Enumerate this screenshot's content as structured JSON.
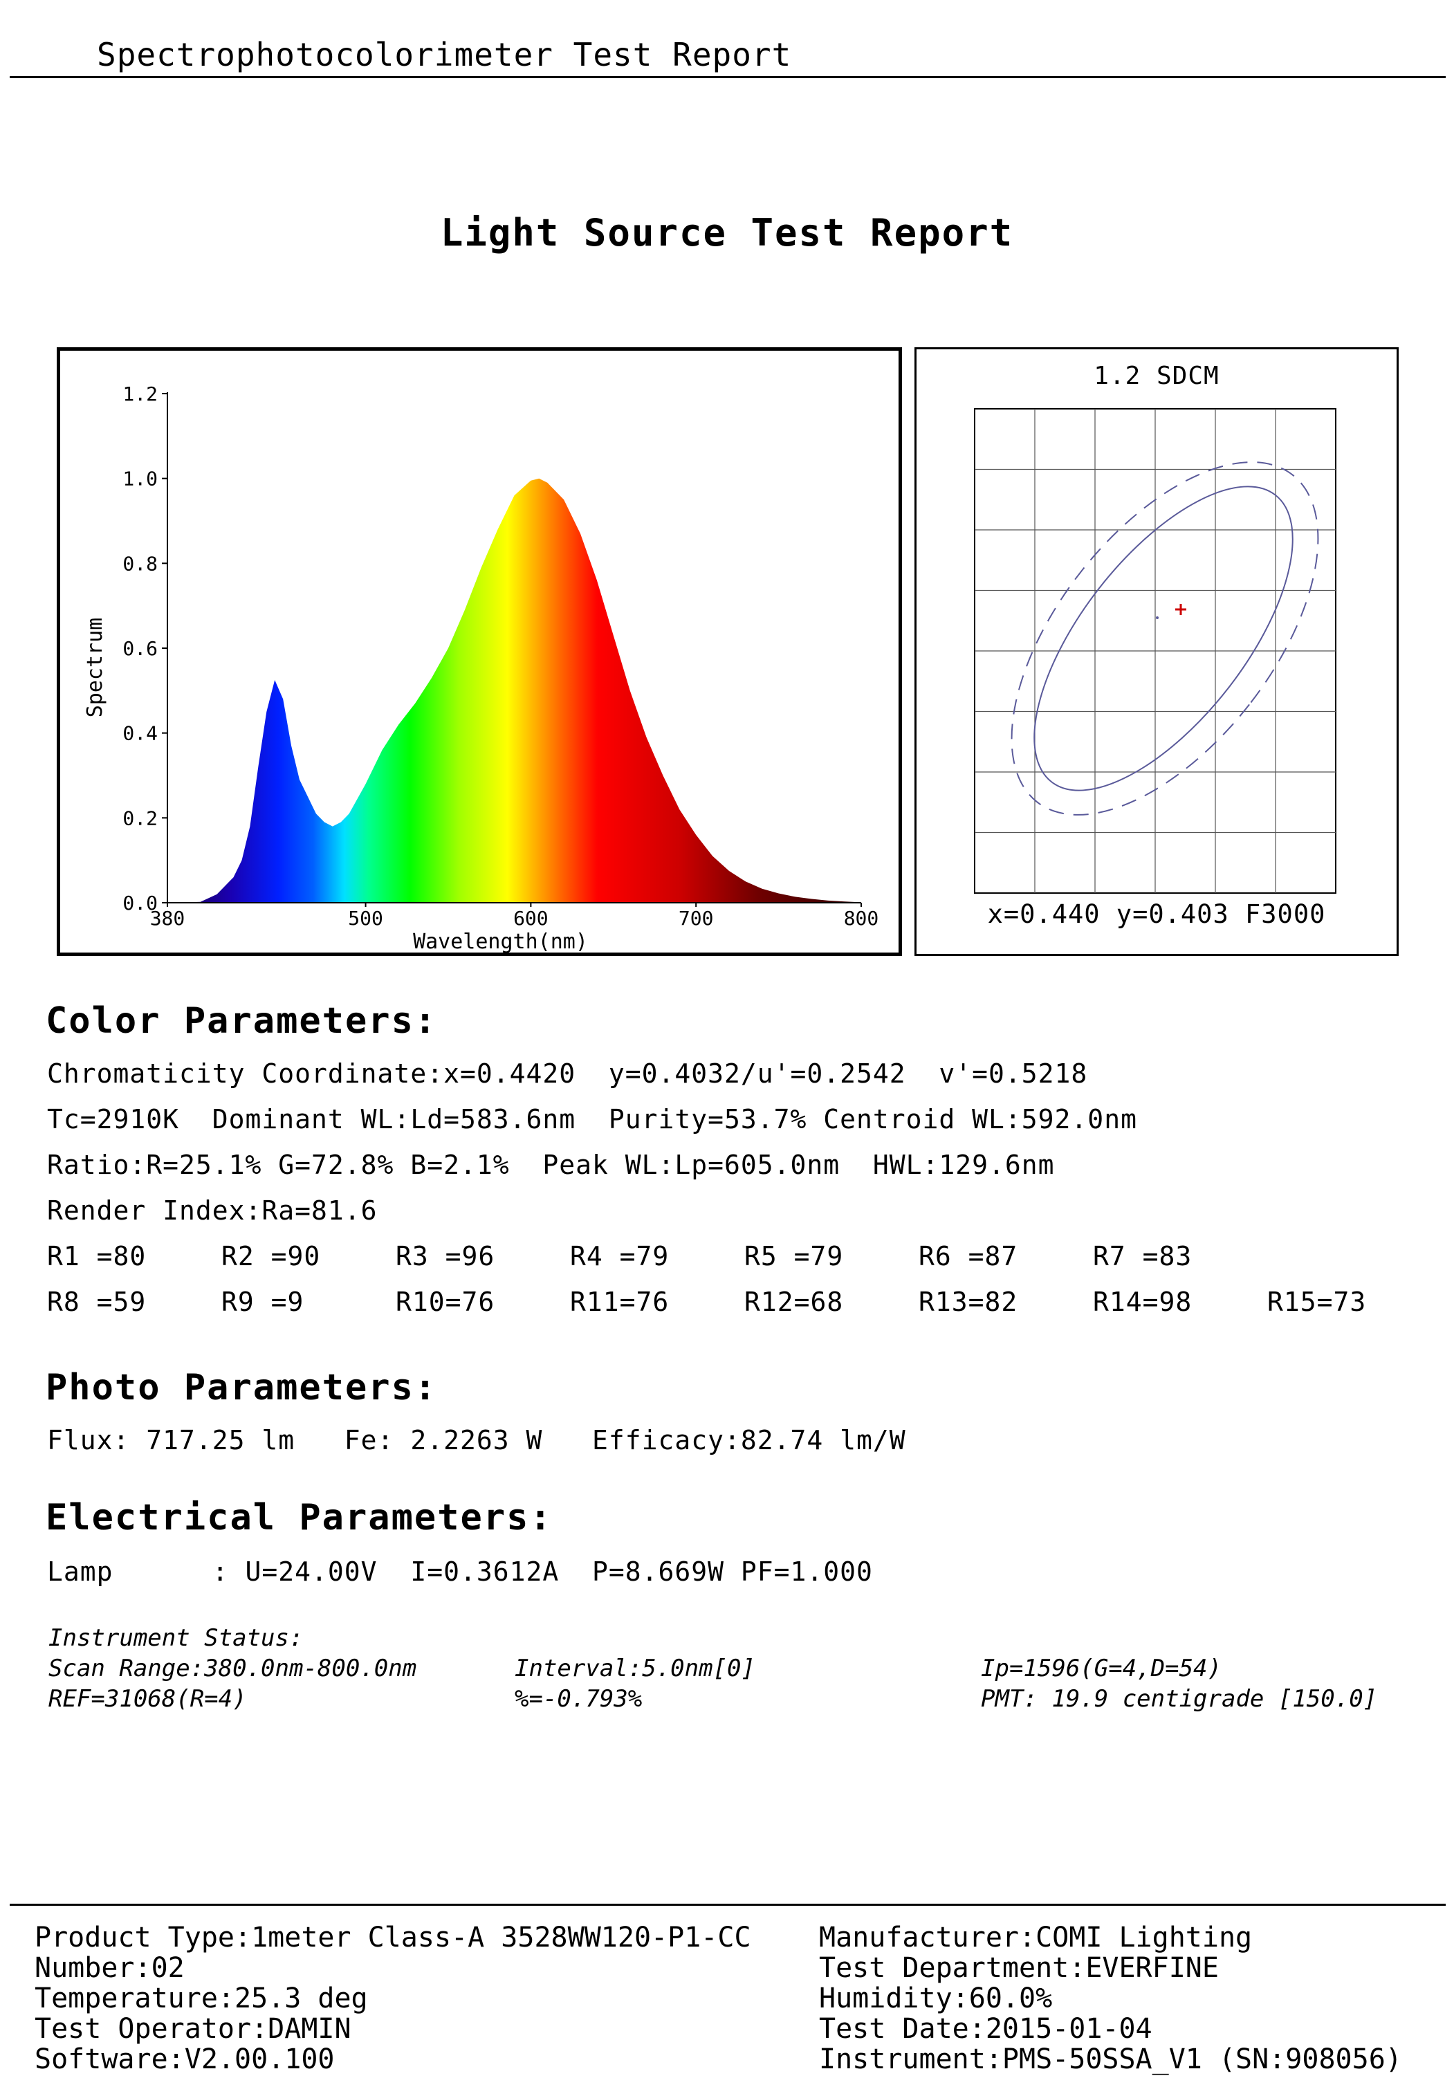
{
  "header": {
    "title": "Spectrophotocolorimeter Test Report"
  },
  "report_title": "Light Source Test Report",
  "chart_data": [
    {
      "type": "area",
      "xlabel": "Wavelength(nm)",
      "ylabel": "Spectrum",
      "xlim": [
        380,
        800
      ],
      "ylim": [
        0,
        1.2
      ],
      "x_ticks": [
        "380",
        "500",
        "600",
        "700",
        "800"
      ],
      "y_ticks": [
        "0.0",
        "0.2",
        "0.4",
        "0.6",
        "0.8",
        "1.0",
        "1.2"
      ],
      "grid": false,
      "fill": "visible-spectrum gradient",
      "x": [
        380,
        400,
        410,
        420,
        425,
        430,
        435,
        440,
        445,
        450,
        455,
        460,
        465,
        470,
        475,
        480,
        485,
        490,
        500,
        510,
        520,
        530,
        540,
        550,
        560,
        570,
        580,
        590,
        600,
        605,
        610,
        620,
        630,
        640,
        650,
        660,
        670,
        680,
        690,
        700,
        710,
        720,
        730,
        740,
        750,
        760,
        770,
        780,
        790,
        800
      ],
      "y": [
        0.0,
        0.002,
        0.02,
        0.06,
        0.1,
        0.18,
        0.32,
        0.45,
        0.525,
        0.48,
        0.37,
        0.29,
        0.25,
        0.21,
        0.19,
        0.18,
        0.19,
        0.21,
        0.28,
        0.36,
        0.42,
        0.47,
        0.53,
        0.6,
        0.69,
        0.79,
        0.88,
        0.96,
        0.995,
        1.0,
        0.99,
        0.95,
        0.87,
        0.76,
        0.63,
        0.5,
        0.39,
        0.3,
        0.22,
        0.16,
        0.11,
        0.075,
        0.05,
        0.033,
        0.022,
        0.014,
        0.009,
        0.005,
        0.003,
        0.001
      ]
    },
    {
      "type": "scatter",
      "title": "1.2 SDCM",
      "grid": true,
      "point_label": "x=0.440 y=0.403 F3000",
      "point": {
        "x": 0.44,
        "y": 0.403
      },
      "series": [
        {
          "name": "",
          "style": "solid ellipse"
        },
        {
          "name": "",
          "style": "dashed ellipse"
        }
      ]
    }
  ],
  "color_parameters": {
    "title": "Color Parameters:",
    "lines": [
      "Chromaticity Coordinate:x=0.4420  y=0.4032/u'=0.2542  v'=0.5218",
      "Tc=2910K  Dominant WL:Ld=583.6nm  Purity=53.7% Centroid WL:592.0nm",
      "Ratio:R=25.1% G=72.8% B=2.1%  Peak WL:Lp=605.0nm  HWL:129.6nm",
      "Render Index:Ra=81.6"
    ],
    "r_row1": [
      "R1 =80",
      "R2 =90",
      "R3 =96",
      "R4 =79",
      "R5 =79",
      "R6 =87",
      "R7 =83"
    ],
    "r_row2": [
      "R8 =59",
      "R9 =9",
      "R10=76",
      "R11=76",
      "R12=68",
      "R13=82",
      "R14=98",
      "R15=73"
    ]
  },
  "photo_parameters": {
    "title": "Photo Parameters:",
    "line": "Flux: 717.25 lm   Fe: 2.2263 W   Efficacy:82.74 lm/W"
  },
  "electrical_parameters": {
    "title": "Electrical Parameters:",
    "line": "Lamp      : U=24.00V  I=0.3612A  P=8.669W PF=1.000"
  },
  "instrument_status": {
    "title": "Instrument Status:",
    "scan_range": "Scan Range:380.0nm-800.0nm",
    "interval": "Interval:5.0nm[0]",
    "ip": "Ip=1596(G=4,D=54)",
    "ref": "REF=31068(R=4)",
    "percent": "%=-0.793%",
    "pmt": "PMT: 19.9 centigrade [150.0]"
  },
  "footer": {
    "left": [
      "Product Type:1meter Class-A 3528WW120-P1-CC",
      "Number:02",
      "Temperature:25.3 deg",
      "Test Operator:DAMIN",
      "Software:V2.00.100"
    ],
    "right": [
      "Manufacturer:COMI Lighting",
      "Test Department:EVERFINE",
      "Humidity:60.0%",
      "Test Date:2015-01-04",
      "Instrument:PMS-50SSA_V1 (SN:908056)"
    ]
  },
  "colors": {
    "point_marker": "#cc0000",
    "ellipse": "#5a5a9a"
  }
}
